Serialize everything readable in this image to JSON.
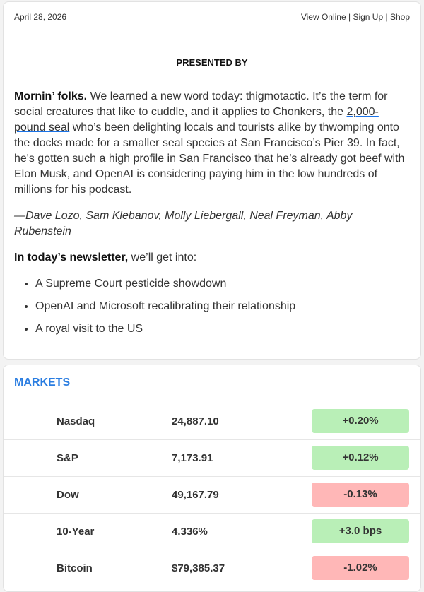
{
  "header": {
    "date": "April 28, 2026",
    "links": [
      "View Online",
      "Sign Up",
      "Shop"
    ],
    "separator": "|"
  },
  "presented_by": "PRESENTED BY",
  "intro": {
    "greeting": "Mornin’ folks.",
    "text_before_link": " We learned a new word today: thigmotactic. It’s the term for social creatures that like to cuddle, and it applies to Chonkers, the ",
    "link": "2,000-pound seal",
    "text_after_link": " who’s been delighting locals and tourists alike by thwomping onto the docks made for a smaller seal species at San Francisco’s Pier 39. In fact, he's gotten such a high profile in San Francisco that he’s already got beef with Elon Musk, and OpenAI is considering paying him in the low hundreds of millions for his podcast."
  },
  "byline": "—Dave Lozo, Sam Klebanov, Molly Liebergall, Neal Freyman, Abby Rubenstein",
  "today": {
    "lead": "In today’s newsletter,",
    "text": " we’ll get into:",
    "items": [
      "A Supreme Court pesticide showdown",
      "OpenAI and Microsoft recalibrating their relationship",
      "A royal visit to the US"
    ]
  },
  "markets": {
    "title": "MARKETS",
    "rows": [
      {
        "name": "Nasdaq",
        "value": "24,887.10",
        "change": "+0.20%",
        "direction": "up"
      },
      {
        "name": "S&P",
        "value": "7,173.91",
        "change": "+0.12%",
        "direction": "up"
      },
      {
        "name": "Dow",
        "value": "49,167.79",
        "change": "-0.13%",
        "direction": "down"
      },
      {
        "name": "10-Year",
        "value": "4.336%",
        "change": "+3.0 bps",
        "direction": "up"
      },
      {
        "name": "Bitcoin",
        "value": "$79,385.37",
        "change": "-1.02%",
        "direction": "down"
      }
    ]
  }
}
